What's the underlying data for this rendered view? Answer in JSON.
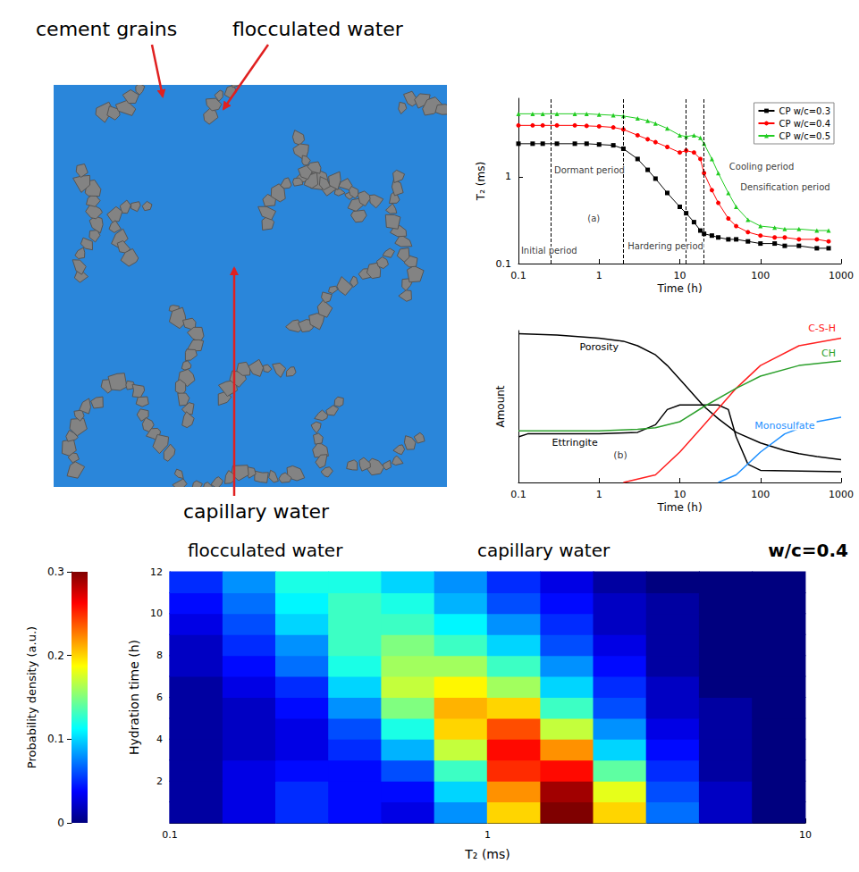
{
  "diagram": {
    "labels": [
      "cement grains",
      "flocculated water",
      "capillary water"
    ]
  },
  "chart_data": [
    {
      "type": "line",
      "x_label": "Time (h)",
      "y_label": "T₂ (ms)",
      "log": true,
      "xlim": [
        0.1,
        1000
      ],
      "xticks": [
        0.1,
        1,
        10,
        100,
        1000
      ],
      "ylim": [
        0.1,
        8
      ],
      "yticks": [
        0.1,
        1
      ],
      "legend": "upper right",
      "vlines": [
        0.25,
        2,
        12,
        20
      ],
      "annotations": [
        "Initial period",
        "Dormant period",
        "Hardering period",
        "(a)",
        "Cooling period",
        "Densification period"
      ],
      "x": [
        0.1,
        0.15,
        0.2,
        0.3,
        0.5,
        0.7,
        1,
        1.5,
        2,
        3,
        4,
        5,
        7,
        10,
        12,
        15,
        18,
        20,
        25,
        30,
        40,
        50,
        70,
        100,
        150,
        200,
        300,
        500,
        700
      ],
      "series": [
        {
          "name": "CP w/c=0.3",
          "color": "#000000",
          "marker": "square",
          "values": [
            2.4,
            2.4,
            2.4,
            2.4,
            2.4,
            2.4,
            2.35,
            2.3,
            2.1,
            1.6,
            1.2,
            0.95,
            0.65,
            0.45,
            0.38,
            0.3,
            0.24,
            0.22,
            0.21,
            0.2,
            0.19,
            0.19,
            0.18,
            0.17,
            0.17,
            0.16,
            0.16,
            0.15,
            0.15
          ]
        },
        {
          "name": "CP w/c=0.4",
          "color": "#ff0000",
          "marker": "circle",
          "values": [
            3.9,
            3.9,
            3.9,
            3.9,
            3.9,
            3.85,
            3.8,
            3.7,
            3.5,
            3,
            2.7,
            2.5,
            2.2,
            1.9,
            2,
            1.9,
            1.6,
            1.1,
            0.7,
            0.5,
            0.33,
            0.27,
            0.23,
            0.21,
            0.2,
            0.2,
            0.19,
            0.19,
            0.18
          ]
        },
        {
          "name": "CP w/c=0.5",
          "color": "#22cc22",
          "marker": "triangle",
          "values": [
            5.3,
            5.3,
            5.3,
            5.3,
            5.3,
            5.3,
            5.2,
            5.1,
            5,
            4.7,
            4.4,
            4.1,
            3.6,
            3,
            2.9,
            3,
            2.8,
            2.4,
            1.6,
            1.1,
            0.65,
            0.45,
            0.32,
            0.27,
            0.26,
            0.25,
            0.25,
            0.24,
            0.24
          ]
        }
      ]
    },
    {
      "type": "line",
      "x_label": "Time (h)",
      "y_label": "Amount",
      "log": "x",
      "xlim": [
        0.1,
        1000
      ],
      "xticks": [
        0.1,
        1,
        10,
        100,
        1000
      ],
      "ylim": [
        0,
        1
      ],
      "tick_labels": "x",
      "annotations": [
        "(b)"
      ],
      "series": [
        {
          "name": "Porosity",
          "color": "#000000",
          "x": [
            0.1,
            0.3,
            1,
            2,
            3,
            5,
            7,
            10,
            20,
            30,
            50,
            100,
            200,
            300,
            500,
            1000
          ],
          "values": [
            0.98,
            0.97,
            0.95,
            0.93,
            0.9,
            0.84,
            0.77,
            0.68,
            0.5,
            0.42,
            0.33,
            0.26,
            0.21,
            0.19,
            0.17,
            0.15
          ]
        },
        {
          "name": "Ettringite",
          "color": "#000000",
          "x": [
            0.1,
            0.13,
            0.5,
            1,
            3,
            5,
            7,
            10,
            30,
            40,
            50,
            70,
            100,
            1000
          ],
          "values": [
            0.3,
            0.32,
            0.32,
            0.32,
            0.33,
            0.38,
            0.48,
            0.51,
            0.51,
            0.48,
            0.3,
            0.12,
            0.08,
            0.07
          ]
        },
        {
          "name": "C-S-H",
          "color": "#ff2020",
          "x": [
            2,
            5,
            10,
            20,
            50,
            100,
            300,
            1000
          ],
          "values": [
            0,
            0.05,
            0.2,
            0.38,
            0.62,
            0.77,
            0.9,
            0.95
          ]
        },
        {
          "name": "CH",
          "color": "#2ca02c",
          "x": [
            0.1,
            1,
            3,
            5,
            10,
            20,
            50,
            100,
            300,
            1000
          ],
          "values": [
            0.34,
            0.34,
            0.35,
            0.36,
            0.4,
            0.5,
            0.62,
            0.7,
            0.77,
            0.8
          ]
        },
        {
          "name": "Monosulfate",
          "color": "#1e90ff",
          "x": [
            30,
            50,
            100,
            200,
            500,
            1000
          ],
          "values": [
            0,
            0.05,
            0.2,
            0.32,
            0.4,
            0.43
          ]
        }
      ]
    },
    {
      "type": "heatmap",
      "x_label": "T₂ (ms)",
      "y_label": "Hydration time (h)",
      "log": "x",
      "xlim": [
        0.1,
        10
      ],
      "xticks": [
        0.1,
        1,
        10
      ],
      "ylim": [
        0,
        12
      ],
      "yticks": [
        2,
        4,
        6,
        8,
        10,
        12
      ],
      "annotations": [
        "capillary water",
        "flocculated water",
        "w/c=0.4"
      ],
      "x": [
        0.121,
        0.178,
        0.261,
        0.383,
        0.562,
        0.825,
        1.21,
        1.78,
        2.61,
        3.83,
        5.62,
        8.25
      ],
      "y": [
        0.5,
        1.5,
        2.5,
        3.5,
        4.5,
        5.5,
        6.5,
        7.5,
        8.5,
        9.5,
        10.5,
        11.5
      ],
      "values": [
        [
          0.01,
          0.03,
          0.05,
          0.04,
          0.03,
          0.08,
          0.2,
          0.3,
          0.2,
          0.07,
          0.02,
          0
        ],
        [
          0.01,
          0.03,
          0.05,
          0.04,
          0.04,
          0.1,
          0.22,
          0.29,
          0.18,
          0.06,
          0.02,
          0
        ],
        [
          0.01,
          0.03,
          0.04,
          0.04,
          0.06,
          0.13,
          0.25,
          0.26,
          0.14,
          0.05,
          0.01,
          0
        ],
        [
          0.01,
          0.02,
          0.03,
          0.05,
          0.09,
          0.17,
          0.26,
          0.22,
          0.1,
          0.04,
          0.01,
          0
        ],
        [
          0.01,
          0.02,
          0.03,
          0.06,
          0.12,
          0.2,
          0.24,
          0.17,
          0.08,
          0.03,
          0.01,
          0
        ],
        [
          0.01,
          0.02,
          0.04,
          0.08,
          0.15,
          0.21,
          0.2,
          0.13,
          0.06,
          0.02,
          0.01,
          0
        ],
        [
          0.01,
          0.03,
          0.05,
          0.1,
          0.17,
          0.19,
          0.16,
          0.1,
          0.05,
          0.02,
          0,
          0
        ],
        [
          0.02,
          0.04,
          0.07,
          0.12,
          0.16,
          0.16,
          0.13,
          0.08,
          0.04,
          0.01,
          0,
          0
        ],
        [
          0.02,
          0.05,
          0.08,
          0.13,
          0.15,
          0.13,
          0.1,
          0.06,
          0.03,
          0.01,
          0,
          0
        ],
        [
          0.03,
          0.06,
          0.1,
          0.13,
          0.13,
          0.11,
          0.08,
          0.05,
          0.02,
          0.01,
          0,
          0
        ],
        [
          0.04,
          0.07,
          0.11,
          0.13,
          0.12,
          0.09,
          0.06,
          0.04,
          0.02,
          0.01,
          0,
          0
        ],
        [
          0.05,
          0.08,
          0.12,
          0.12,
          0.1,
          0.08,
          0.05,
          0.03,
          0.01,
          0,
          0,
          0
        ]
      ],
      "colorbar": {
        "label": "Probability density (a.u.)",
        "range": [
          0,
          0.3
        ],
        "ticks": [
          0,
          0.1,
          0.2,
          0.3
        ]
      }
    }
  ]
}
